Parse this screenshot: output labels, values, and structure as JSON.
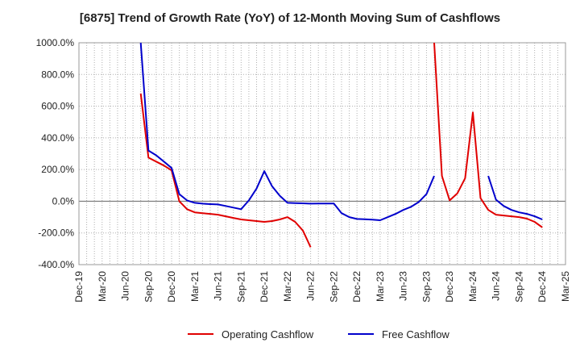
{
  "chart_data": {
    "type": "line",
    "title": "[6875]  Trend of Growth Rate (YoY) of 12-Month Moving Sum of Cashflows",
    "xlabel": "",
    "ylabel": "",
    "x_ticks": [
      "Dec-19",
      "Mar-20",
      "Jun-20",
      "Sep-20",
      "Dec-20",
      "Mar-21",
      "Jun-21",
      "Sep-21",
      "Dec-21",
      "Mar-22",
      "Jun-22",
      "Sep-22",
      "Dec-22",
      "Mar-23",
      "Jun-23",
      "Sep-23",
      "Dec-23",
      "Mar-24",
      "Jun-24",
      "Sep-24",
      "Dec-24",
      "Mar-25"
    ],
    "y_ticks": [
      "1000.0%",
      "800.0%",
      "600.0%",
      "400.0%",
      "200.0%",
      "0.0%",
      "-200.0%",
      "-400.0%"
    ],
    "ylim": [
      -400,
      1000
    ],
    "grid": true,
    "legend_position": "bottom",
    "series": [
      {
        "name": "Operating Cashflow",
        "color": "#e00000",
        "segments": [
          [
            [
              "2020-08",
              680
            ],
            [
              "2020-09",
              275
            ],
            [
              "2020-10",
              250
            ],
            [
              "2020-11",
              225
            ],
            [
              "2020-12",
              195
            ],
            [
              "2021-01",
              0
            ],
            [
              "2021-02",
              -50
            ],
            [
              "2021-03",
              -70
            ],
            [
              "2021-04",
              -75
            ],
            [
              "2021-05",
              -80
            ],
            [
              "2021-06",
              -85
            ],
            [
              "2021-07",
              -95
            ],
            [
              "2021-08",
              -105
            ],
            [
              "2021-09",
              -115
            ],
            [
              "2021-10",
              -120
            ],
            [
              "2021-11",
              -125
            ],
            [
              "2021-12",
              -130
            ],
            [
              "2022-01",
              -125
            ],
            [
              "2022-02",
              -115
            ],
            [
              "2022-03",
              -100
            ],
            [
              "2022-04",
              -130
            ],
            [
              "2022-05",
              -185
            ],
            [
              "2022-06",
              -290
            ]
          ],
          [
            [
              "2023-10",
              1000
            ],
            [
              "2023-11",
              160
            ],
            [
              "2023-12",
              5
            ],
            [
              "2024-01",
              50
            ],
            [
              "2024-02",
              145
            ],
            [
              "2024-03",
              560
            ],
            [
              "2024-04",
              20
            ],
            [
              "2024-05",
              -55
            ],
            [
              "2024-06",
              -85
            ],
            [
              "2024-07",
              -90
            ],
            [
              "2024-08",
              -95
            ],
            [
              "2024-09",
              -100
            ],
            [
              "2024-10",
              -110
            ],
            [
              "2024-11",
              -130
            ],
            [
              "2024-12",
              -165
            ]
          ]
        ]
      },
      {
        "name": "Free Cashflow",
        "color": "#0000cc",
        "segments": [
          [
            [
              "2020-08",
              1000
            ],
            [
              "2020-09",
              320
            ],
            [
              "2020-10",
              290
            ],
            [
              "2020-11",
              250
            ],
            [
              "2020-12",
              210
            ],
            [
              "2021-01",
              45
            ],
            [
              "2021-02",
              5
            ],
            [
              "2021-03",
              -10
            ],
            [
              "2021-04",
              -15
            ],
            [
              "2021-05",
              -18
            ],
            [
              "2021-06",
              -20
            ],
            [
              "2021-07",
              -30
            ],
            [
              "2021-08",
              -40
            ],
            [
              "2021-09",
              -50
            ],
            [
              "2021-10",
              5
            ],
            [
              "2021-11",
              80
            ],
            [
              "2021-12",
              190
            ],
            [
              "2022-01",
              95
            ],
            [
              "2022-02",
              35
            ],
            [
              "2022-03",
              -10
            ],
            [
              "2022-04",
              -12
            ],
            [
              "2022-05",
              -13
            ],
            [
              "2022-06",
              -15
            ],
            [
              "2022-07",
              -14
            ],
            [
              "2022-08",
              -14
            ],
            [
              "2022-09",
              -14
            ],
            [
              "2022-10",
              -75
            ],
            [
              "2022-11",
              -100
            ],
            [
              "2022-12",
              -112
            ],
            [
              "2023-01",
              -114
            ],
            [
              "2023-02",
              -116
            ],
            [
              "2023-03",
              -120
            ],
            [
              "2023-04",
              -100
            ],
            [
              "2023-05",
              -80
            ],
            [
              "2023-06",
              -55
            ],
            [
              "2023-07",
              -35
            ],
            [
              "2023-08",
              -5
            ],
            [
              "2023-09",
              45
            ],
            [
              "2023-10",
              160
            ]
          ],
          [
            [
              "2024-05",
              160
            ],
            [
              "2024-06",
              10
            ],
            [
              "2024-07",
              -30
            ],
            [
              "2024-08",
              -55
            ],
            [
              "2024-09",
              -70
            ],
            [
              "2024-10",
              -80
            ],
            [
              "2024-11",
              -95
            ],
            [
              "2024-12",
              -115
            ]
          ]
        ]
      }
    ]
  }
}
